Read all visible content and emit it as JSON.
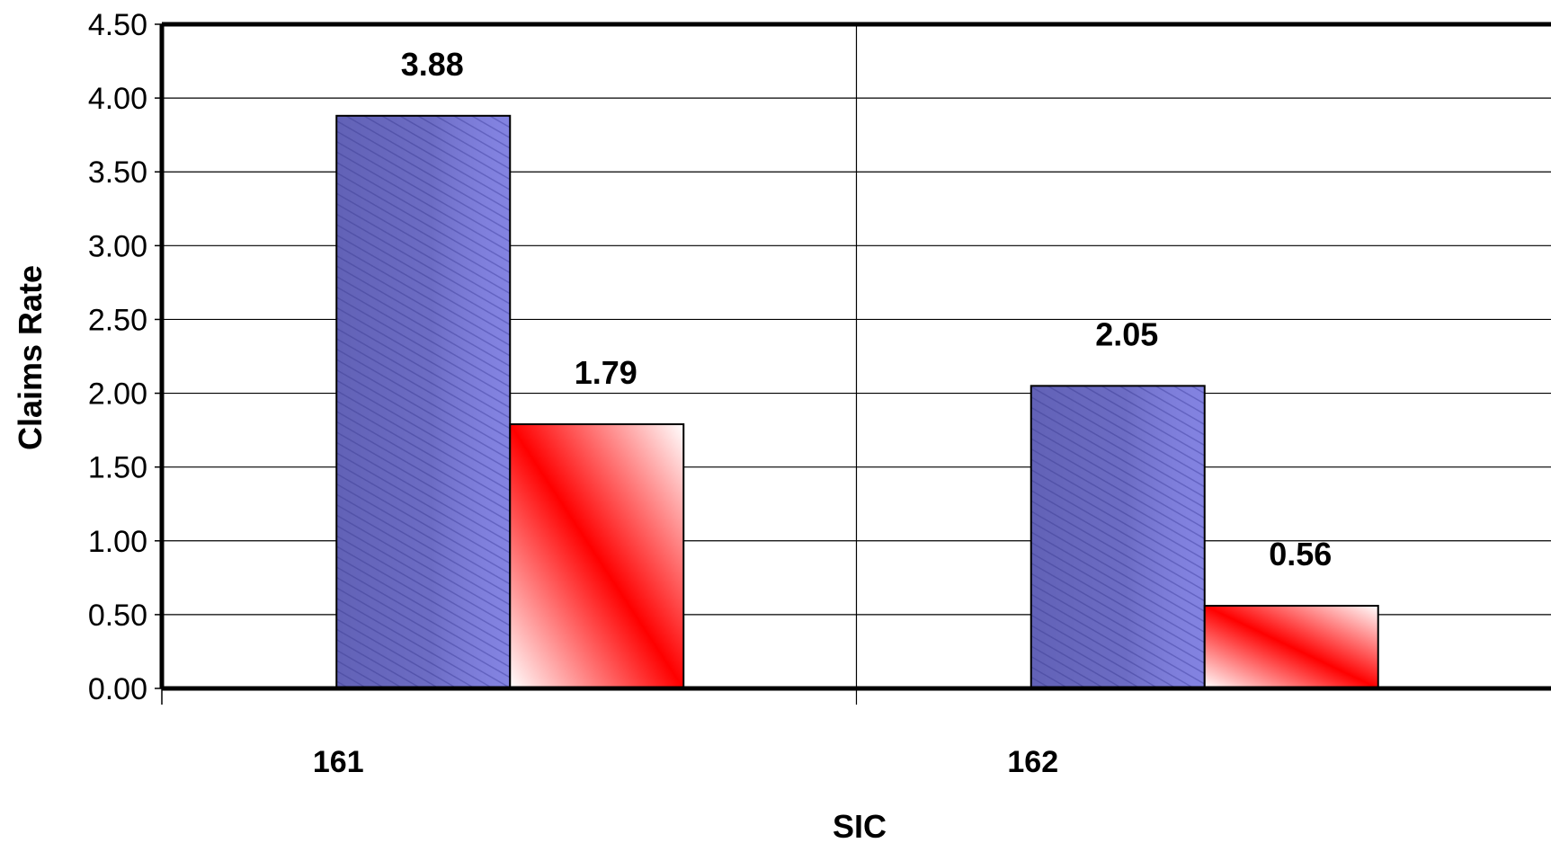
{
  "chart_data": {
    "type": "bar",
    "title": "",
    "xlabel": "SIC",
    "ylabel": "Claims Rate",
    "categories": [
      "161",
      "162"
    ],
    "series": [
      {
        "values": [
          3.88,
          2.05
        ],
        "color": "#7b7bd6"
      },
      {
        "values": [
          1.79,
          0.56
        ],
        "color": "#ff0000"
      }
    ],
    "data_labels": [
      [
        "3.88",
        "2.05"
      ],
      [
        "1.79",
        "0.56"
      ]
    ],
    "ylim": [
      0,
      4.5
    ],
    "yticks": [
      "0.00",
      "0.50",
      "1.00",
      "1.50",
      "2.00",
      "2.50",
      "3.00",
      "3.50",
      "4.00",
      "4.50"
    ],
    "grid": true,
    "legend": "none"
  }
}
